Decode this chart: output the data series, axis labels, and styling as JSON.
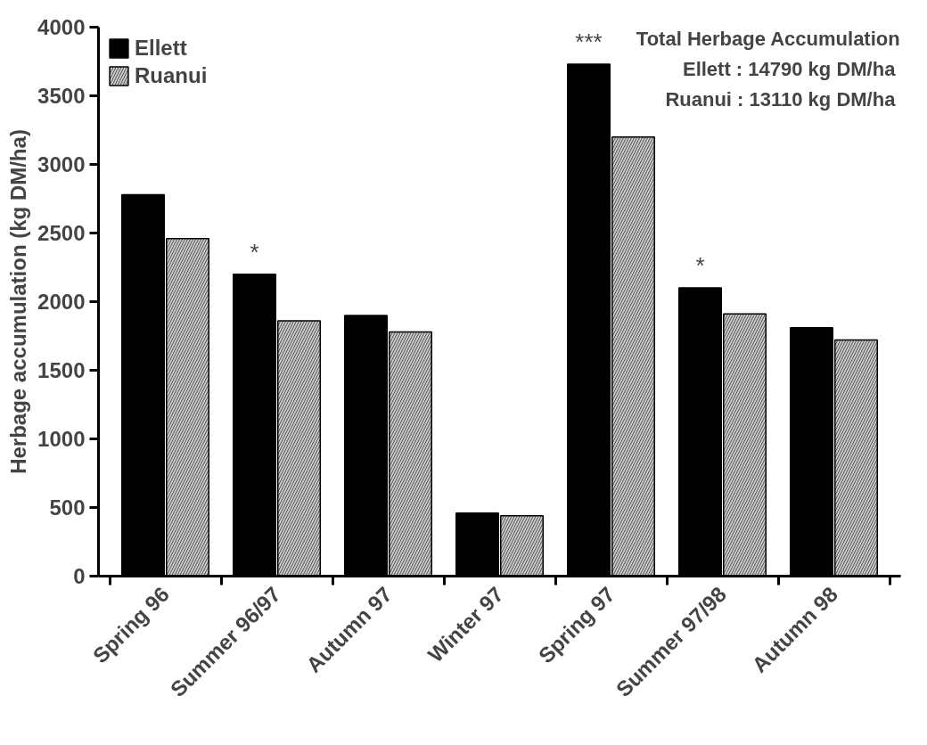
{
  "chart_data": {
    "type": "bar",
    "ylabel": "Herbage accumulation (kg DM/ha)",
    "categories": [
      "Spring 96",
      "Summer 96/97",
      "Autumn 97",
      "Winter 97",
      "Spring 97",
      "Summer 97/98",
      "Autumn 98"
    ],
    "series": [
      {
        "name": "Ellett",
        "color": "#000000",
        "values": [
          2780,
          2200,
          1900,
          460,
          3730,
          2100,
          1810
        ]
      },
      {
        "name": "Ruanui",
        "color": "#c8c8c8",
        "values": [
          2460,
          1860,
          1780,
          440,
          3200,
          1910,
          1720
        ]
      }
    ],
    "ylim": [
      0,
      4000
    ],
    "yticks": [
      0,
      500,
      1000,
      1500,
      2000,
      2500,
      3000,
      3500,
      4000
    ],
    "grid": false,
    "legend": "top left",
    "annotations": [
      {
        "text": "*",
        "x": "Summer 96/97",
        "y": 2200
      },
      {
        "text": "***",
        "x": "Spring 97",
        "y": 3730
      },
      {
        "text": "*",
        "x": "Summer 97/98",
        "y": 2100
      },
      "Total Herbage Accumulation",
      "Ellett  : 14790 kg DM/ha",
      "Ruanui  : 13110 kg DM/ha"
    ]
  }
}
